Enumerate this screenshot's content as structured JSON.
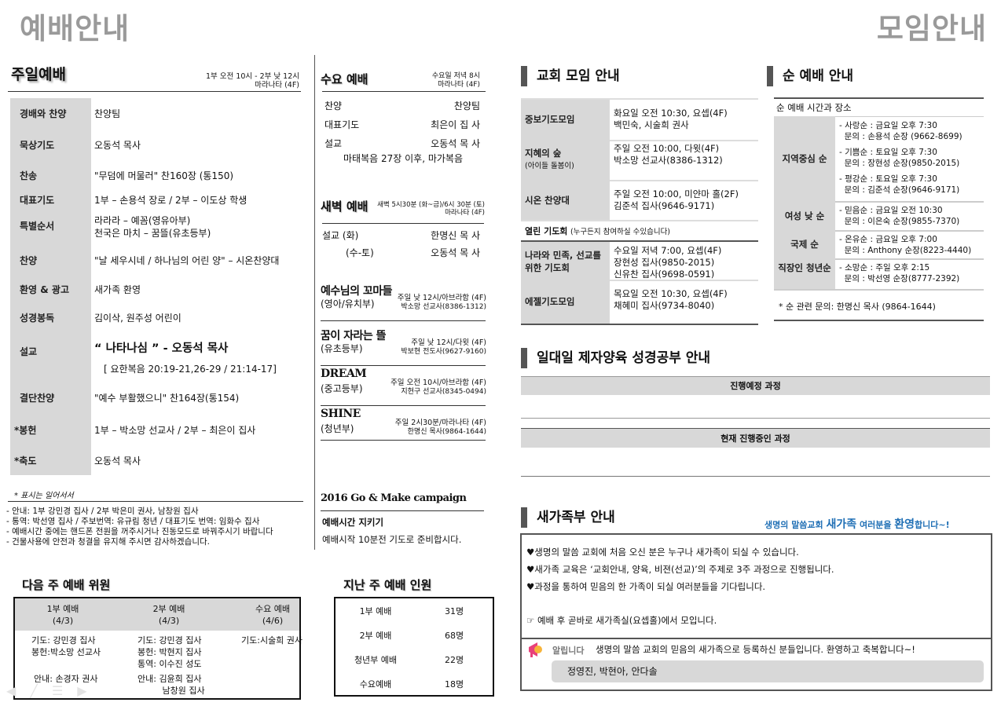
{
  "titles": {
    "left": "예배안내",
    "right": "모임안내"
  },
  "sunday": {
    "title": "주일예배",
    "time": "1부 오전 10시 - 2부 낮 12시",
    "place": "마라나타 (4F)",
    "rows": [
      {
        "label": "경배와 찬양",
        "value": [
          "찬양팀"
        ]
      },
      {
        "label": "묵상기도",
        "value": [
          "오동석 목사"
        ]
      },
      {
        "label": "찬송",
        "value": [
          "\"무덤에 머물러\"   찬160장 (통150)"
        ]
      },
      {
        "label": "대표기도",
        "value": [
          "1부 – 손용석 장로 / 2부 – 이도상 학생"
        ]
      },
      {
        "label": "특별순서",
        "value": [
          "라라라 – 예꼼(영유아부)",
          "천국은 마치 – 꿈뜰(유초등부)"
        ]
      },
      {
        "label": "찬양",
        "value": [
          "\"날 세우시네 / 하나님의 어린 양\" – 시온찬양대"
        ]
      },
      {
        "label": "환영 & 광고",
        "value": [
          "새가족 환영"
        ]
      },
      {
        "label": "성경봉독",
        "value": [
          "김이삭, 원주성 어린이"
        ]
      },
      {
        "label": "설교",
        "value": [
          "“ 나타나심 ” - 오동석 목사",
          "[ 요한복음 20:19-21,26-29  / 21:14-17]"
        ]
      },
      {
        "label": "결단찬양",
        "value": [
          "\"예수 부활했으니\" 찬164장(통154)"
        ]
      },
      {
        "label": "*봉헌",
        "value": [
          "1부 – 박소망 선교사 / 2부 – 최은이 집사"
        ]
      },
      {
        "label": "*축도",
        "value": [
          "오동석 목사"
        ]
      }
    ],
    "standing_note": "* 표시는 일어서서",
    "notices": [
      "- 안내: 1부 강민경 집사 / 2부 박은미 권사, 남창원 집사",
      "- 통역: 박선영 집사 / 주보번역: 유규림 청년 / 대표기도 번역: 임화수 집사",
      "- 예배시간 중에는 핸드폰 전원을 꺼주시거나 진동모드로 바꿔주시기 바랍니다",
      "- 건물사용에 안전과 청결을 유지해 주시면 감사하겠습니다."
    ]
  },
  "wednesday": {
    "title": "수요 예배",
    "time": "수요일 저녁 8시",
    "place": "마라나타 (4F)",
    "rows": [
      {
        "label": "찬양",
        "value": "찬양팀"
      },
      {
        "label": "대표기도",
        "value": "최은이 집  사"
      },
      {
        "label": "설교",
        "value": "오동석 목  사"
      }
    ],
    "text": "마태복음 27장 이후, 마가복음"
  },
  "dawn": {
    "title": "새벽 예배",
    "time": "새벽 5시30분 (화~금)/6시 30분 (토)",
    "place": "마라나타 (4F)",
    "rows": [
      {
        "label": "설교 (화)",
        "value": "한명신 목  사"
      },
      {
        "label": "(수-토)",
        "value": "오동석 목  사"
      }
    ]
  },
  "groups": [
    {
      "name": "예수님의 꼬마들",
      "dept": "(영아/유치부)",
      "time": "주일 낮 12시/아브라함 (4F)",
      "contact": "박소망 선교사(8386-1312)"
    },
    {
      "name": "꿈이 자라는 뜰",
      "dept": "(유초등부)",
      "time": "주일 낮 12시/다윗 (4F)",
      "contact": "박보현 전도사(9627-9160)"
    },
    {
      "name": "DREAM",
      "dept": "(중고등부)",
      "time": "주일 오전 10시/아브라함 (4F)",
      "contact": "지현구 선교사(8345-0494)"
    },
    {
      "name": "SHINE",
      "dept": "(청년부)",
      "time": "주일 2시30분/마라나타 (4F)",
      "contact": "한명신 목사(9864-1644)"
    }
  ],
  "campaign": {
    "title": "2016 Go & Make campaign",
    "subtitle": "예배시간 지키기",
    "text": "예배시작 10분전 기도로 준비합시다."
  },
  "next_week": {
    "title": "다음 주 예배 위원",
    "columns": [
      {
        "name": "1부 예배",
        "date": "(4/3)",
        "lines": [
          "기도: 강민경 집사",
          "봉헌:박소망 선교사"
        ],
        "usher": [
          "안내: 손경자 권사"
        ]
      },
      {
        "name": "2부 예배",
        "date": "(4/3)",
        "lines": [
          "기도: 강민경 집사",
          "봉헌: 박현지 집사",
          "통역: 이수진 성도"
        ],
        "usher": [
          "안내: 김윤희 집사",
          "         남창원 집사"
        ]
      },
      {
        "name": "수요 예배",
        "date": "(4/6)",
        "lines": [
          "기도:시술희 권사"
        ],
        "usher": []
      }
    ]
  },
  "last_week": {
    "title": "지난 주 예배 인원",
    "rows": [
      {
        "label": "1부 예배",
        "count": "31명"
      },
      {
        "label": "2부 예배",
        "count": "68명"
      },
      {
        "label": "청년부 예배",
        "count": "22명"
      },
      {
        "label": "수요예배",
        "count": "18명"
      }
    ]
  },
  "meetings": {
    "title": "교회 모임 안내",
    "rows": [
      {
        "label": "중보기도모임",
        "sub": "",
        "value": [
          "화요일 오전 10:30, 요셉(4F)",
          "백민숙, 시술희 권사"
        ]
      },
      {
        "label": "지혜의 숲",
        "sub": "(아이들 돌봄이)",
        "value": [
          "주일 오전 10:00, 다윗(4F)",
          "박소망 선교사(8386-1312)"
        ]
      },
      {
        "label": "시온 찬양대",
        "sub": "",
        "value": [
          "주일 오전 10:00, 미얀마 홀(2F)",
          "김준석 집사(9646-9171)"
        ]
      },
      {
        "label": "나라와 민족, 선교를 위한 기도회",
        "sub": "",
        "value": [
          "수요일 저녁 7:00, 요셉(4F)",
          "장현성 집사(9850-2015)",
          "신유찬 집사(9698-0591)"
        ]
      },
      {
        "label": "에젤기도모임",
        "sub": "",
        "value": [
          "목요일 오전 10:30, 요셉(4F)",
          "채혜미 집사(9734-8040)"
        ]
      }
    ],
    "open_prayer": {
      "label": "열린 기도회",
      "note": "(누구든지 참여하실 수있습니다)"
    }
  },
  "cell_groups": {
    "title": "순 예배 안내",
    "header": "순 예배 시간과 장소",
    "rows": [
      {
        "label": "지역중심 순",
        "items": [
          "- 사랑순 : 금요일 오후 7:30",
          "  문의 : 손용석 순장 (9662-8699)",
          "- 기쁨순 : 토요일 오후 7:30",
          "  문의 : 장현성 순장(9850-2015)",
          "- 평강순 : 토요일 오후 7:30",
          "  문의 : 김준석 순장(9646-9171)"
        ]
      },
      {
        "label": "여성 낮 순",
        "items": [
          "- 믿음순 : 금요일 오전 10:30",
          "  문의 : 이은숙 순장(9855-7370)"
        ]
      },
      {
        "label": "국제 순",
        "items": [
          "- 온유순 : 금요일 오후 7:00",
          "  문의 : Anthony 순장(8223-4440)"
        ]
      },
      {
        "label": "직장인 청년순",
        "items": [
          "- 소망순 : 주일 오후 2:15",
          "  문의 : 박선영 순장(8777-2392)"
        ]
      }
    ],
    "note": "* 순 관련 문의:  한명신 목사  (9864-1644)"
  },
  "discipleship": {
    "title": "일대일 제자양육 성경공부 안내",
    "planned": "진행예정 과정",
    "current": "현재 진행중인 과정"
  },
  "newcomers": {
    "title": "새가족부 안내",
    "slogan_pre": "생명의 말씀교회 ",
    "slogan_a": "새가족",
    "slogan_mid": " 여러분을 ",
    "slogan_b": "환영",
    "slogan_post": "합니다~!",
    "lines": [
      "♥생명의 말씀 교회에 처음 오신 분은 누구나 새가족이 되실 수 있습니다.",
      "♥새가족 교육은 ‘교회안내, 양육, 비젼(선교)’의 주제로 3주 과정으로 진행됩니다.",
      "♥과정을 통하여 믿음의 한 가족이 되실 여러분들을 기다립니다."
    ],
    "meet": "☞ 예배 후 곧바로 새가족실(요셉홀)에서 모입니다.",
    "notice_label": "알립니다",
    "notice": "생명의 말씀 교회의 믿음의 새가족으로 등록하신 분들입니다. 환영하고 축복합니다~!",
    "names": "정영진, 박현아, 안다솔",
    "accent": "#1f6fb5"
  }
}
